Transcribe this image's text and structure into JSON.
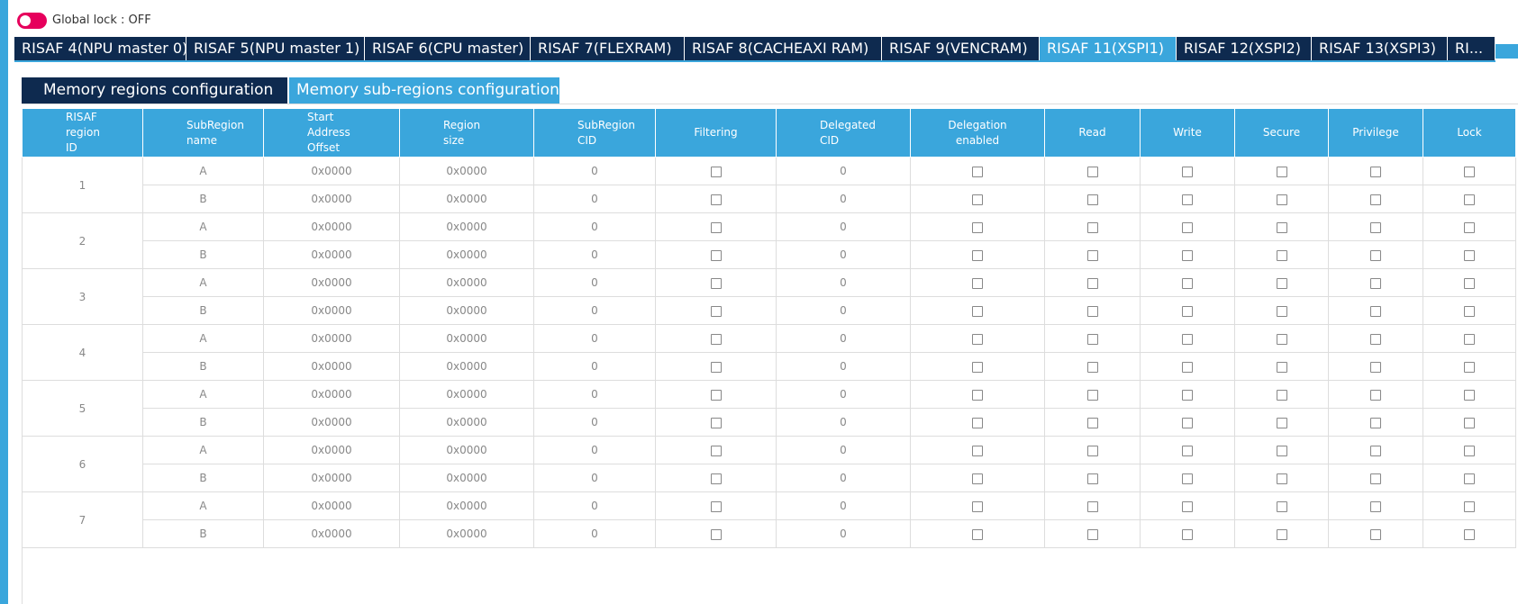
{
  "global_lock": "Global lock : OFF",
  "tabs": [
    "RISAF 4(NPU master 0)",
    "RISAF 5(NPU master 1)",
    "RISAF 6(CPU master)",
    "RISAF 7(FLEXRAM)",
    "RISAF 8(CACHEAXI RAM)",
    "RISAF 9(VENCRAM)",
    "RISAF 11(XSPI1)",
    "RISAF 12(XSPI2)",
    "RISAF 13(XSPI3)",
    "RI..."
  ],
  "subtabs": [
    "Memory regions configuration",
    "Memory sub-regions configuration"
  ],
  "table": {
    "headers": [
      "RISAF\nregion\nID",
      "SubRegion\nname",
      "Start\nAddress\nOffset",
      "Region\nsize",
      "SubRegion\nCID",
      "Filtering",
      "Delegated\nCID",
      "Delegation\nenabled",
      "Read",
      "Write",
      "Secure",
      "Privilege",
      "Lock"
    ],
    "rows": [
      {
        "id": "1",
        "subregions": [
          {
            "name": "A",
            "start": "0x0000",
            "size": "0x0000",
            "cid": "0",
            "delegated_cid": "0"
          },
          {
            "name": "B",
            "start": "0x0000",
            "size": "0x0000",
            "cid": "0",
            "delegated_cid": "0"
          }
        ]
      },
      {
        "id": "2",
        "subregions": [
          {
            "name": "A",
            "start": "0x0000",
            "size": "0x0000",
            "cid": "0",
            "delegated_cid": "0"
          },
          {
            "name": "B",
            "start": "0x0000",
            "size": "0x0000",
            "cid": "0",
            "delegated_cid": "0"
          }
        ]
      },
      {
        "id": "3",
        "subregions": [
          {
            "name": "A",
            "start": "0x0000",
            "size": "0x0000",
            "cid": "0",
            "delegated_cid": "0"
          },
          {
            "name": "B",
            "start": "0x0000",
            "size": "0x0000",
            "cid": "0",
            "delegated_cid": "0"
          }
        ]
      },
      {
        "id": "4",
        "subregions": [
          {
            "name": "A",
            "start": "0x0000",
            "size": "0x0000",
            "cid": "0",
            "delegated_cid": "0"
          },
          {
            "name": "B",
            "start": "0x0000",
            "size": "0x0000",
            "cid": "0",
            "delegated_cid": "0"
          }
        ]
      },
      {
        "id": "5",
        "subregions": [
          {
            "name": "A",
            "start": "0x0000",
            "size": "0x0000",
            "cid": "0",
            "delegated_cid": "0"
          },
          {
            "name": "B",
            "start": "0x0000",
            "size": "0x0000",
            "cid": "0",
            "delegated_cid": "0"
          }
        ]
      },
      {
        "id": "6",
        "subregions": [
          {
            "name": "A",
            "start": "0x0000",
            "size": "0x0000",
            "cid": "0",
            "delegated_cid": "0"
          },
          {
            "name": "B",
            "start": "0x0000",
            "size": "0x0000",
            "cid": "0",
            "delegated_cid": "0"
          }
        ]
      },
      {
        "id": "7",
        "subregions": [
          {
            "name": "A",
            "start": "0x0000",
            "size": "0x0000",
            "cid": "0",
            "delegated_cid": "0"
          },
          {
            "name": "B",
            "start": "0x0000",
            "size": "0x0000",
            "cid": "0",
            "delegated_cid": "0"
          }
        ]
      }
    ]
  }
}
